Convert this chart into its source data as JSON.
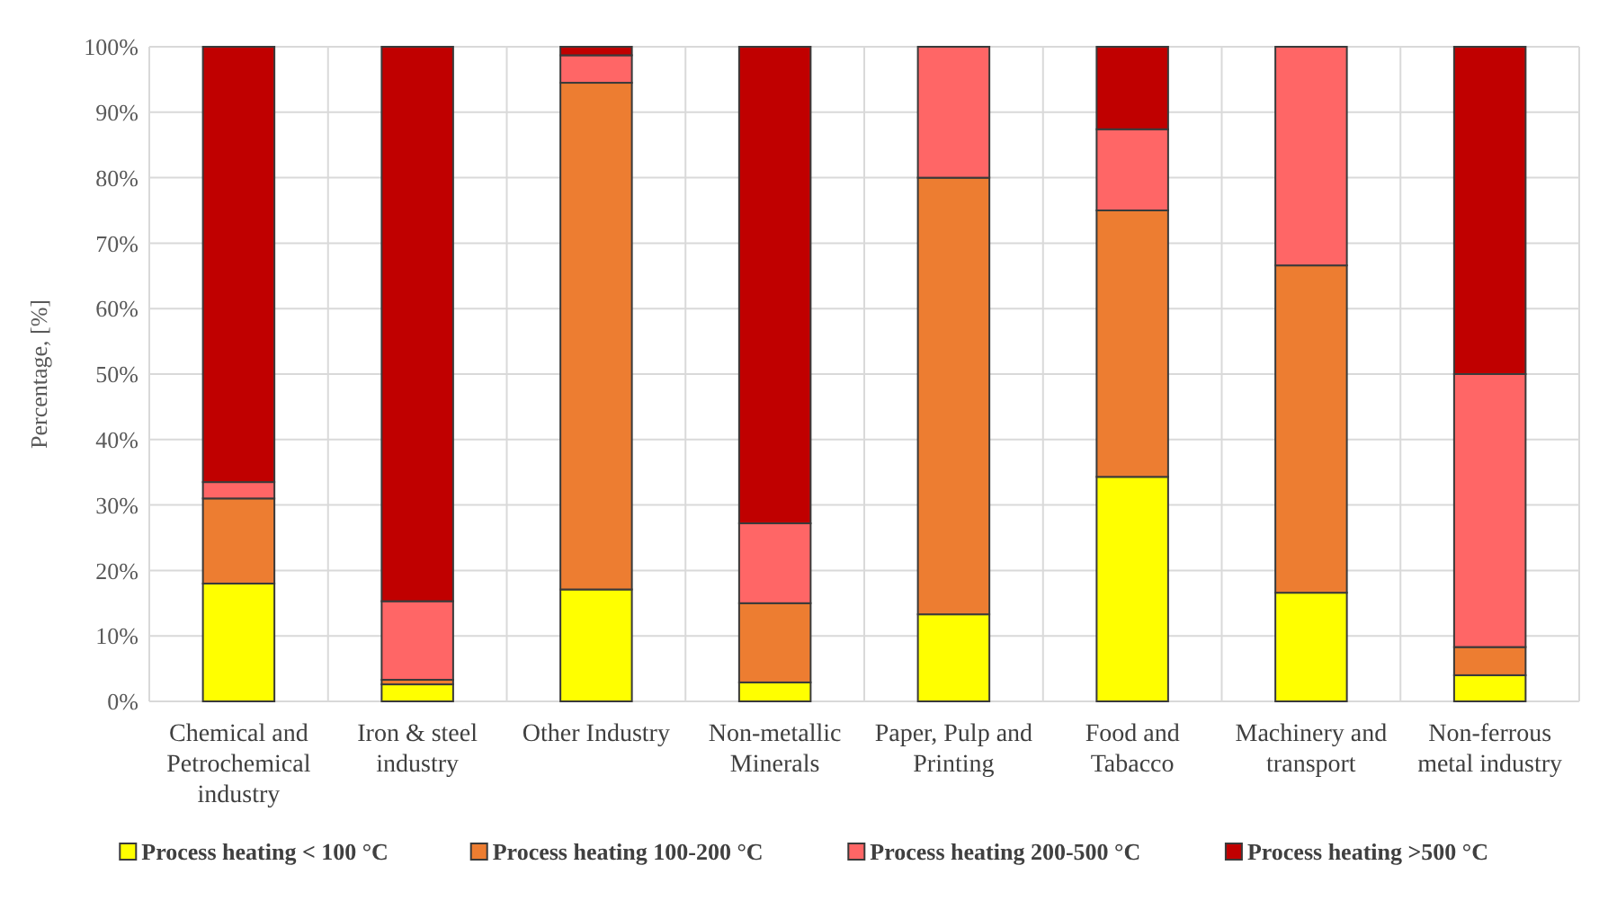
{
  "chart_data": {
    "type": "bar",
    "stacked": true,
    "ylabel": "Percentage, [%]",
    "categories": [
      "Chemical and Petrochemical industry",
      "Iron & steel industry",
      "Other Industry",
      "Non-metallic Minerals",
      "Paper, Pulp and Printing",
      "Food and Tabacco",
      "Machinery and transport",
      "Non-ferrous metal industry"
    ],
    "series": [
      {
        "name": "Process heating < 100 °C",
        "color": "#ffff00",
        "values": [
          18,
          2.6,
          17.1,
          2.9,
          13.3,
          34.3,
          16.6,
          4
        ]
      },
      {
        "name": "Process heating 100-200 °C",
        "color": "#ed7d31",
        "values": [
          13,
          0.7,
          77.4,
          12.1,
          66.7,
          40.7,
          50,
          4.3
        ]
      },
      {
        "name": "Process heating 200-500 °C",
        "color": "#ff6666",
        "values": [
          2.5,
          12,
          4.2,
          12.2,
          20,
          12.4,
          33.4,
          41.7
        ]
      },
      {
        "name": "Process heating >500 °C",
        "color": "#c00000",
        "values": [
          66.5,
          84.7,
          1.3,
          72.8,
          0,
          12.6,
          0,
          50
        ]
      }
    ],
    "ylim": [
      0,
      100
    ],
    "yticks": [
      {
        "value": 0,
        "label": "0%"
      },
      {
        "value": 10,
        "label": "10%"
      },
      {
        "value": 20,
        "label": "20%"
      },
      {
        "value": 30,
        "label": "30%"
      },
      {
        "value": 40,
        "label": "40%"
      },
      {
        "value": 50,
        "label": "50%"
      },
      {
        "value": 60,
        "label": "60%"
      },
      {
        "value": 70,
        "label": "70%"
      },
      {
        "value": 80,
        "label": "80%"
      },
      {
        "value": 90,
        "label": "90%"
      },
      {
        "value": 100,
        "label": "100%"
      }
    ],
    "grid": true,
    "legend": "bottom"
  }
}
